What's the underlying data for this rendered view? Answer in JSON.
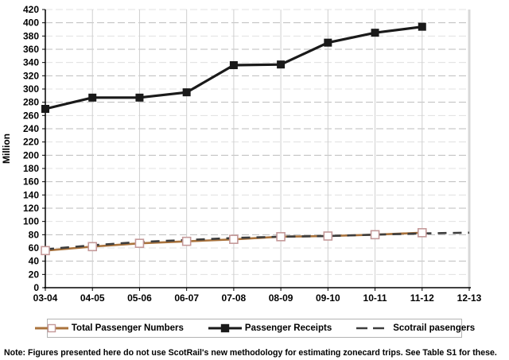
{
  "chart_data": {
    "type": "line",
    "title": "",
    "ylabel": "Million",
    "ylim": [
      0,
      420
    ],
    "ytick_step": 20,
    "grid": true,
    "legend_position": "bottom",
    "categories": [
      "03-04",
      "04-05",
      "05-06",
      "06-07",
      "07-08",
      "08-09",
      "09-10",
      "10-11",
      "11-12",
      "12-13"
    ],
    "series": [
      {
        "name": "Total Passenger Numbers",
        "values": [
          56,
          62,
          67,
          70,
          73,
          77,
          78,
          80,
          83,
          null
        ],
        "line_color": "#aa733c",
        "marker": "open-square",
        "marker_fill": "#ffffff",
        "marker_border": "#c49999",
        "dash": "solid"
      },
      {
        "name": "Passenger Receipts",
        "values": [
          270,
          287,
          287,
          295,
          336,
          337,
          370,
          385,
          394,
          null
        ],
        "line_color": "#1a1a1a",
        "marker": "filled-square",
        "marker_fill": "#1a1a1a",
        "marker_border": "#1a1a1a",
        "dash": "solid"
      },
      {
        "name": "Scotrail pasengers",
        "values": [
          58,
          64,
          69,
          72,
          75,
          77,
          78,
          80,
          82,
          83
        ],
        "line_color": "#3d3d3d",
        "marker": "none",
        "dash": "dashed"
      }
    ],
    "grid_colors": {
      "major_h": "#bdbdbd",
      "minor_h": "#e0e0e0",
      "vertical": "#cfcfcf",
      "right_border": "#d8d8d8",
      "axis": "#000000"
    }
  },
  "note": "Note: Figures presented here do not use ScotRail's new methodology for estimating zonecard trips. See Table S1 for these."
}
